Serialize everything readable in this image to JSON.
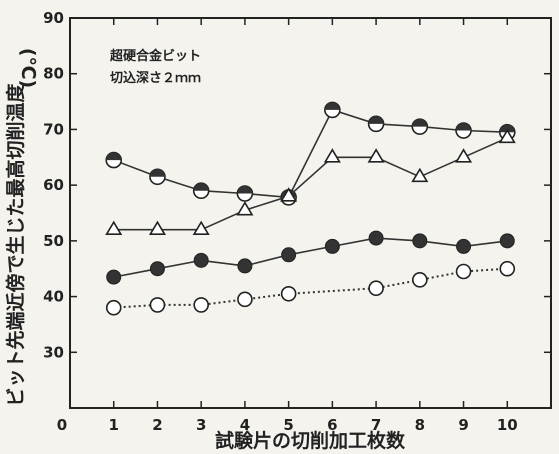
{
  "chart_data": {
    "type": "line",
    "title": "",
    "xlabel": "試験片の切削加工枚数",
    "ylabel": "ビット先端近傍で生じた最高切削温度",
    "yunit": "(℃)",
    "annotation_lines": [
      "超硬合金ビット",
      "切込深さ２ｍｍ"
    ],
    "x_tick_labels": [
      "0",
      "1",
      "2",
      "3",
      "4",
      "5",
      "6",
      "7",
      "8",
      "9",
      "10"
    ],
    "y_tick_labels": [
      "30",
      "40",
      "50",
      "60",
      "70",
      "80",
      "90"
    ],
    "xlim": [
      0,
      11
    ],
    "ylim": [
      20,
      90
    ],
    "x": [
      1,
      2,
      3,
      4,
      5,
      6,
      7,
      8,
      9,
      10
    ],
    "grid": false,
    "series": [
      {
        "marker": "double-circle",
        "line": "solid",
        "color": "#333333",
        "values": [
          64.5,
          61.5,
          59,
          58.5,
          57.8,
          73.5,
          71,
          70.5,
          69.8,
          69.5
        ]
      },
      {
        "marker": "triangle",
        "line": "solid",
        "color": "#333333",
        "values": [
          52,
          52,
          52,
          55.5,
          58,
          65,
          65,
          61.5,
          65,
          68.5
        ]
      },
      {
        "marker": "filled-circle",
        "line": "solid",
        "color": "#333333",
        "values": [
          43.5,
          45,
          46.5,
          45.5,
          47.5,
          49,
          50.5,
          50,
          49,
          50
        ]
      },
      {
        "marker": "open-circle",
        "line": "dotted",
        "color": "#333333",
        "values": [
          38,
          38.5,
          38.5,
          39.5,
          40.5,
          null,
          41.5,
          43,
          44.5,
          45
        ]
      }
    ]
  }
}
